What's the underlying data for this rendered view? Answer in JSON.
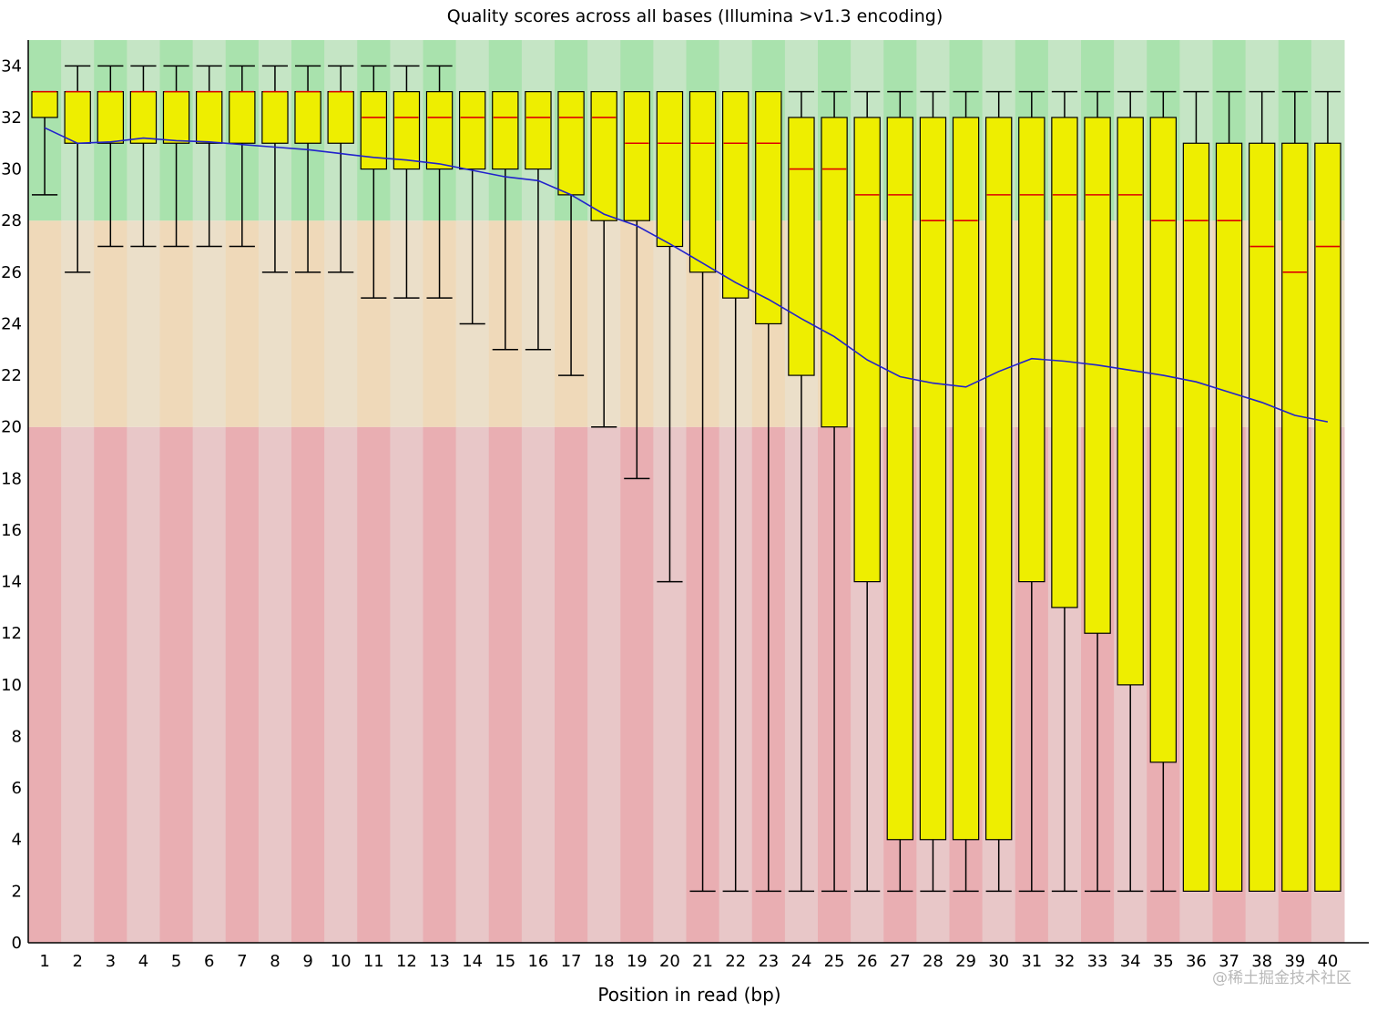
{
  "chart_data": {
    "type": "boxplot",
    "title": "Quality scores across all bases (Illumina >v1.3 encoding)",
    "xlabel": "Position in read (bp)",
    "ylabel": "",
    "ylim": [
      0,
      35
    ],
    "yticks": [
      0,
      2,
      4,
      6,
      8,
      10,
      12,
      14,
      16,
      18,
      20,
      22,
      24,
      26,
      28,
      30,
      32,
      34
    ],
    "zones": [
      {
        "name": "poor",
        "from": 0,
        "to": 20,
        "color_dark": "#e9aeb2",
        "color_light": "#e8c7c8"
      },
      {
        "name": "reasonable",
        "from": 20,
        "to": 28,
        "color_dark": "#efd9b9",
        "color_light": "#ebdfc9"
      },
      {
        "name": "good",
        "from": 28,
        "to": 35,
        "color_dark": "#a9e2ad",
        "color_light": "#c5e5c5"
      }
    ],
    "colors": {
      "box": "#eeee00",
      "median": "#dd0000",
      "mean_line": "#2222cc",
      "whisker": "#000000"
    },
    "categories": [
      "1",
      "2",
      "3",
      "4",
      "5",
      "6",
      "7",
      "8",
      "9",
      "10",
      "11",
      "12",
      "13",
      "14",
      "15",
      "16",
      "17",
      "18",
      "19",
      "20",
      "21",
      "22",
      "23",
      "24",
      "25",
      "26",
      "27",
      "28",
      "29",
      "30",
      "31",
      "32",
      "33",
      "34",
      "35",
      "36",
      "37",
      "38",
      "39",
      "40"
    ],
    "box_lower": [
      32,
      31,
      31,
      31,
      31,
      31,
      31,
      31,
      31,
      31,
      30,
      30,
      30,
      30,
      30,
      30,
      29,
      28,
      28,
      27,
      26,
      25,
      24,
      22,
      20,
      14,
      4,
      4,
      4,
      4,
      14,
      13,
      12,
      10,
      7,
      2,
      2,
      2,
      2,
      2
    ],
    "box_upper": [
      33,
      33,
      33,
      33,
      33,
      33,
      33,
      33,
      33,
      33,
      33,
      33,
      33,
      33,
      33,
      33,
      33,
      33,
      33,
      33,
      33,
      33,
      33,
      32,
      32,
      32,
      32,
      32,
      32,
      32,
      32,
      32,
      32,
      32,
      32,
      31,
      31,
      31,
      31,
      31
    ],
    "median": [
      33,
      33,
      33,
      33,
      33,
      33,
      33,
      33,
      33,
      33,
      32,
      32,
      32,
      32,
      32,
      32,
      32,
      32,
      31,
      31,
      31,
      31,
      31,
      30,
      30,
      29,
      29,
      28,
      28,
      29,
      29,
      29,
      29,
      29,
      28,
      28,
      28,
      27,
      26,
      27
    ],
    "whisker_low": [
      29,
      26,
      27,
      27,
      27,
      27,
      27,
      26,
      26,
      26,
      25,
      25,
      25,
      24,
      23,
      23,
      22,
      20,
      18,
      14,
      2,
      2,
      2,
      2,
      2,
      2,
      2,
      2,
      2,
      2,
      2,
      2,
      2,
      2,
      2,
      2,
      2,
      2,
      2,
      2
    ],
    "whisker_high": [
      33,
      34,
      34,
      34,
      34,
      34,
      34,
      34,
      34,
      34,
      34,
      34,
      34,
      33,
      33,
      33,
      33,
      33,
      33,
      33,
      33,
      33,
      33,
      33,
      33,
      33,
      33,
      33,
      33,
      33,
      33,
      33,
      33,
      33,
      33,
      33,
      33,
      33,
      33,
      33
    ],
    "mean": [
      31.6,
      31.0,
      31.05,
      31.2,
      31.1,
      31.05,
      30.95,
      30.85,
      30.75,
      30.6,
      30.45,
      30.35,
      30.2,
      29.95,
      29.7,
      29.55,
      29.0,
      28.25,
      27.8,
      27.1,
      26.35,
      25.6,
      24.95,
      24.2,
      23.5,
      22.6,
      21.95,
      21.7,
      21.55,
      22.15,
      22.65,
      22.55,
      22.4,
      22.2,
      22.0,
      21.75,
      21.35,
      20.95,
      20.45,
      20.2
    ]
  },
  "watermark": "@稀土掘金技术社区"
}
